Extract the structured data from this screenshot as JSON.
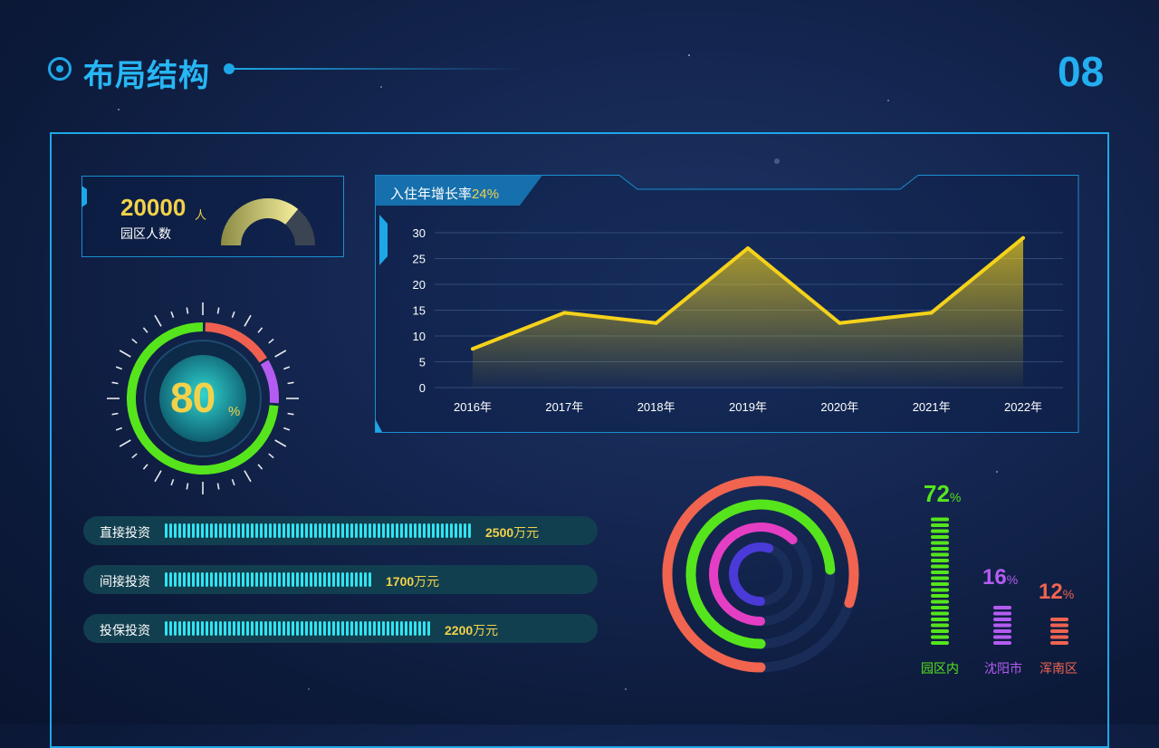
{
  "header": {
    "title": "布局结构",
    "page_number": "08"
  },
  "people_card": {
    "value": "20000",
    "unit": "人",
    "label": "园区人数",
    "gauge_fraction": 0.72
  },
  "big_gauge": {
    "value": "80",
    "unit": "%",
    "segments": [
      {
        "color": "#56e51c",
        "fraction": 0.74
      },
      {
        "color": "#f06050",
        "fraction": 0.16
      },
      {
        "color": "#b45cf2",
        "fraction": 0.1
      }
    ]
  },
  "line_panel": {
    "title_prefix": "入住年增长率",
    "title_highlight": "24%"
  },
  "chart_data": {
    "type": "area",
    "x": [
      "2016年",
      "2017年",
      "2018年",
      "2019年",
      "2020年",
      "2021年",
      "2022年"
    ],
    "y": [
      7.5,
      14.5,
      12.5,
      27,
      12.5,
      14.5,
      29
    ],
    "yticks": [
      "30",
      "25",
      "20",
      "15",
      "10",
      "5",
      "0"
    ],
    "ylim": [
      0,
      30
    ],
    "color": "#f5d21a",
    "grid": true
  },
  "investments": [
    {
      "label": "直接投资",
      "value": "2500",
      "unit": "万元",
      "fraction": 1.0
    },
    {
      "label": "间接投资",
      "value": "1700",
      "unit": "万元",
      "fraction": 0.68
    },
    {
      "label": "投保投资",
      "value": "2200",
      "unit": "万元",
      "fraction": 0.88
    }
  ],
  "ring_chart": [
    {
      "color": "#f06450",
      "fraction": 0.8
    },
    {
      "color": "#56e51c",
      "fraction": 0.74
    },
    {
      "color": "#e43ec4",
      "fraction": 0.62
    },
    {
      "color": "#4a3ad8",
      "fraction": 0.55
    }
  ],
  "region_bars": [
    {
      "label": "园区内",
      "value": "72",
      "unit": "%",
      "color": "#56e51c",
      "segments": 22
    },
    {
      "label": "沈阳市",
      "value": "16",
      "unit": "%",
      "color": "#b45cf2",
      "segments": 7
    },
    {
      "label": "浑南区",
      "value": "12",
      "unit": "%",
      "color": "#f06450",
      "segments": 5
    }
  ]
}
